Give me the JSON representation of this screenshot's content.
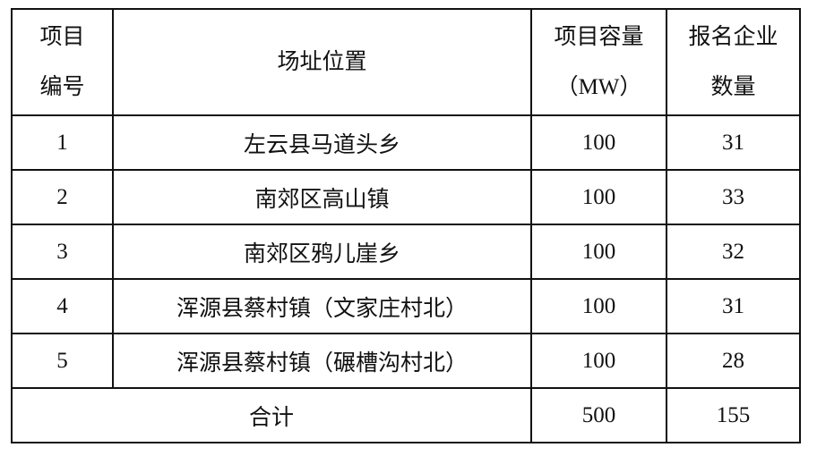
{
  "table": {
    "headers": {
      "number": [
        "项目",
        "编号"
      ],
      "location": "场址位置",
      "capacity": [
        "项目容量",
        "（MW）"
      ],
      "companies": [
        "报名企业",
        "数量"
      ]
    },
    "rows": [
      {
        "number": "1",
        "location": "左云县马道头乡",
        "capacity": "100",
        "companies": "31"
      },
      {
        "number": "2",
        "location": "南郊区高山镇",
        "capacity": "100",
        "companies": "33"
      },
      {
        "number": "3",
        "location": "南郊区鸦儿崖乡",
        "capacity": "100",
        "companies": "32"
      },
      {
        "number": "4",
        "location": "浑源县蔡村镇（文家庄村北）",
        "capacity": "100",
        "companies": "31"
      },
      {
        "number": "5",
        "location": "浑源县蔡村镇（碾槽沟村北）",
        "capacity": "100",
        "companies": "28"
      }
    ],
    "total": {
      "label": "合计",
      "capacity": "500",
      "companies": "155"
    }
  }
}
